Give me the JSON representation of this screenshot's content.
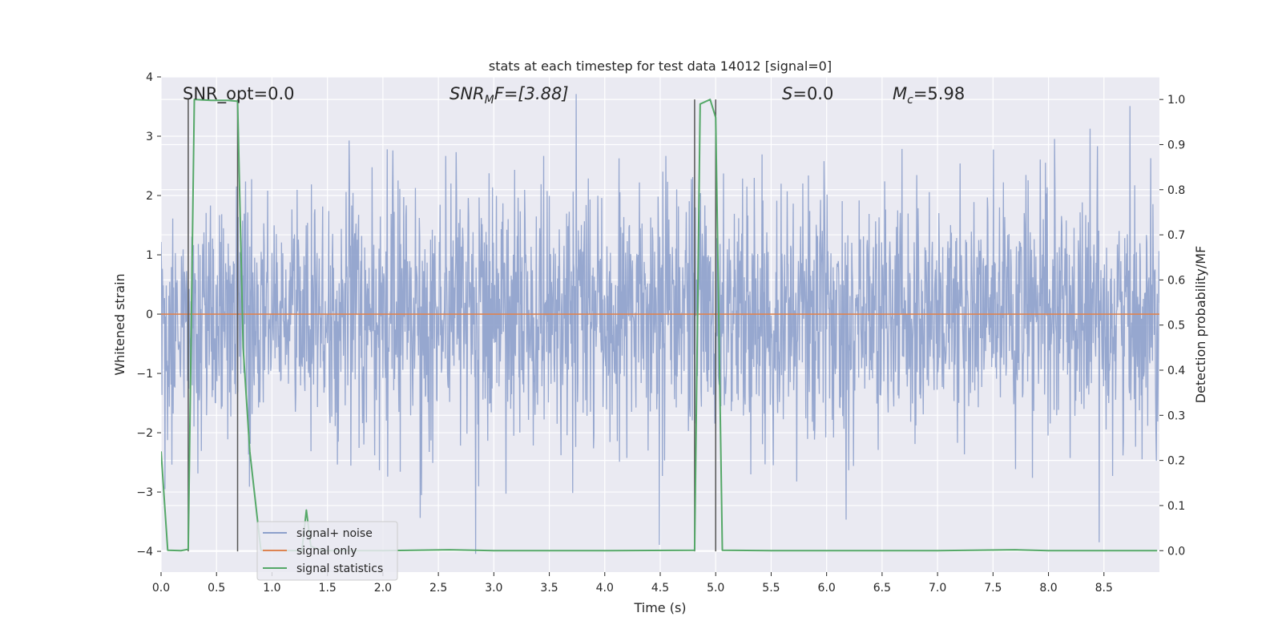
{
  "chart_data": {
    "type": "line",
    "title": "stats at each timestep for test data 14012 [signal=0]",
    "xlabel": "Time (s)",
    "ylabel_left": "Whitened strain",
    "ylabel_right": "Detection probability/MF",
    "xlim": [
      0.0,
      9.0
    ],
    "ylim_left": [
      -4.35,
      4.0
    ],
    "ylim_right": [
      -0.0475,
      1.05
    ],
    "x_ticks": [
      0.0,
      0.5,
      1.0,
      1.5,
      2.0,
      2.5,
      3.0,
      3.5,
      4.0,
      4.5,
      5.0,
      5.5,
      6.0,
      6.5,
      7.0,
      7.5,
      8.0,
      8.5
    ],
    "x_tick_labels": [
      "0.0",
      "0.5",
      "1.0",
      "1.5",
      "2.0",
      "2.5",
      "3.0",
      "3.5",
      "4.0",
      "4.5",
      "5.0",
      "5.5",
      "6.0",
      "6.5",
      "7.0",
      "7.5",
      "8.0",
      "8.5"
    ],
    "y_left_ticks": [
      4,
      3,
      2,
      1,
      0,
      -1,
      -2,
      -3,
      -4
    ],
    "y_left_tick_labels": [
      "4",
      "3",
      "2",
      "1",
      "0",
      "−1",
      "−2",
      "−3",
      "−4"
    ],
    "y_right_ticks": [
      1.0,
      0.9,
      0.8,
      0.7,
      0.6,
      0.5,
      0.4,
      0.3,
      0.2,
      0.1,
      0.0
    ],
    "y_right_tick_labels": [
      "1.0",
      "0.9",
      "0.8",
      "0.7",
      "0.6",
      "0.5",
      "0.4",
      "0.3",
      "0.2",
      "0.1",
      "0.0"
    ],
    "grid": true,
    "legend_position": "lower-left",
    "annotations": {
      "snr_opt": "SNR_opt=0.0",
      "snr_mf_var": "SNR",
      "snr_mf_sub": "M",
      "snr_mf_rest": "F=[3.88]",
      "s_var": "S",
      "s_rest": "=0.0",
      "mc_var": "M",
      "mc_sub": "c",
      "mc_rest": "=5.98"
    },
    "vertical_markers_s": [
      0.245,
      0.69,
      4.81,
      5.0
    ],
    "series": [
      {
        "name": "signal+ noise",
        "color": "#8da0cb",
        "kind": "noise",
        "sample_rate_hz": 256,
        "std": 1.0,
        "axis": "left"
      },
      {
        "name": "signal only",
        "color": "#dd8452",
        "kind": "line",
        "axis": "left",
        "x": [
          0.0,
          9.0
        ],
        "y": [
          0.0,
          0.0
        ]
      },
      {
        "name": "signal statistics",
        "color": "#55a868",
        "kind": "line",
        "axis": "right",
        "x": [
          0.0,
          0.06,
          0.18,
          0.245,
          0.3,
          0.45,
          0.6,
          0.69,
          0.74,
          0.8,
          0.9,
          1.2,
          1.27,
          1.31,
          1.35,
          1.45,
          2.0,
          2.6,
          3.0,
          4.0,
          4.81,
          4.86,
          4.95,
          5.0,
          5.06,
          5.5,
          6.0,
          7.0,
          7.7,
          8.0,
          8.98
        ],
        "y": [
          0.22,
          0.001,
          0.0,
          0.003,
          1.0,
          0.998,
          0.998,
          0.996,
          0.45,
          0.22,
          0.001,
          0.0,
          0.0,
          0.09,
          0.01,
          0.0,
          0.0,
          0.002,
          0.0,
          0.0,
          0.001,
          0.99,
          1.0,
          0.96,
          0.001,
          0.0,
          0.0,
          0.0,
          0.002,
          0.0,
          0.0
        ]
      }
    ]
  }
}
